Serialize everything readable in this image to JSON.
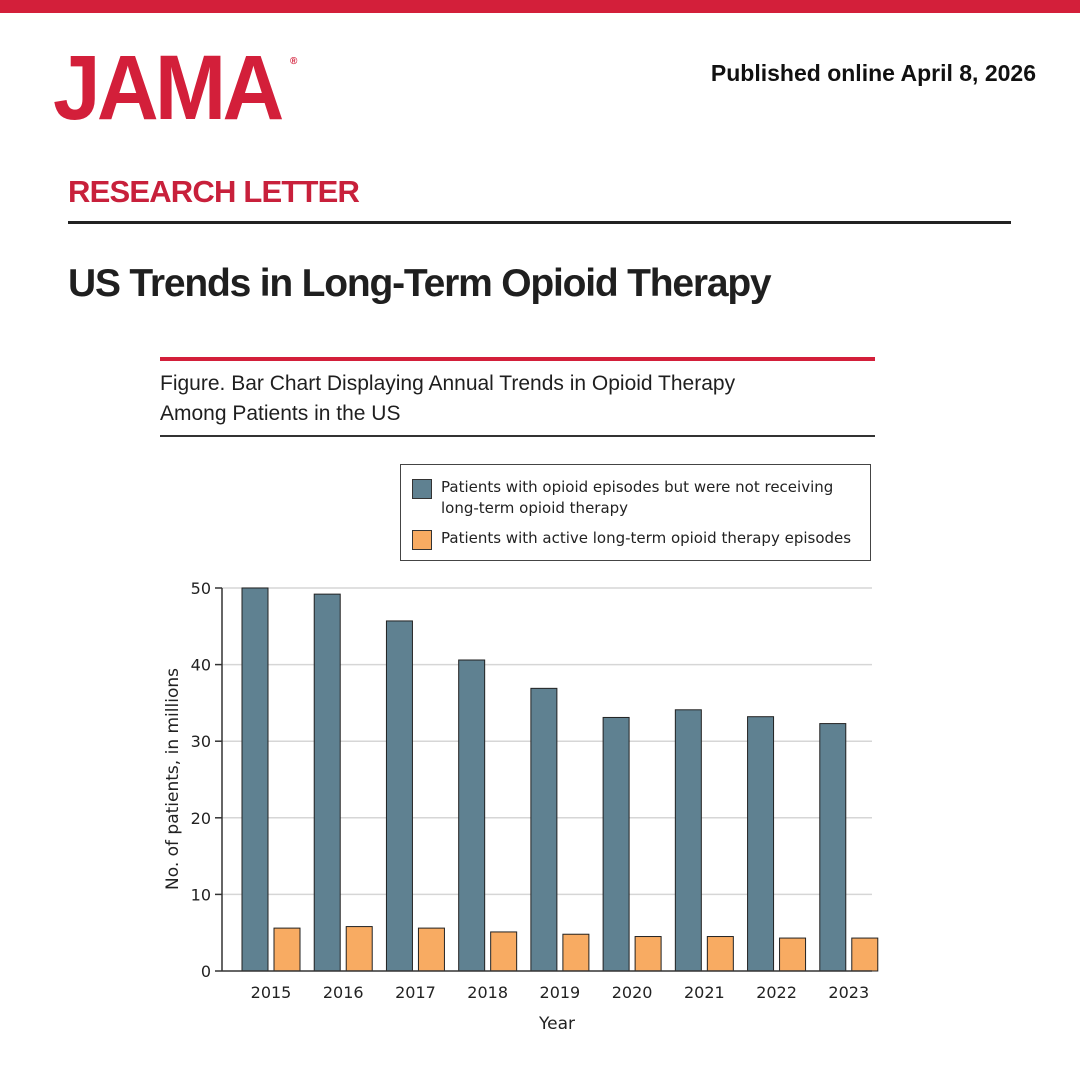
{
  "header": {
    "logo": "JAMA",
    "logo_mark": "®",
    "published": "Published online April 8, 2026"
  },
  "article": {
    "section": "RESEARCH LETTER",
    "title": "US Trends in Long-Term Opioid Therapy"
  },
  "figure": {
    "caption_line1": "Figure. Bar Chart Displaying Annual Trends in Opioid Therapy",
    "caption_line2": "Among Patients in the US"
  },
  "colors": {
    "brand_red": "#d31f3a",
    "series_not_ltot": "#5f8191",
    "series_ltot": "#f8ab62"
  },
  "chart_data": {
    "type": "bar",
    "categories": [
      "2015",
      "2016",
      "2017",
      "2018",
      "2019",
      "2020",
      "2021",
      "2022",
      "2023"
    ],
    "series": [
      {
        "name": "Patients with opioid episodes but were not receiving long-term opioid therapy",
        "legend_line1": "Patients with opioid episodes but were not receiving",
        "legend_line2": "long-term opioid therapy",
        "color": "#5f8191",
        "values": [
          50.0,
          49.2,
          45.7,
          40.6,
          36.9,
          33.1,
          34.1,
          33.2,
          32.3
        ]
      },
      {
        "name": "Patients with active long-term opioid therapy episodes",
        "legend_line1": "Patients with active long-term opioid therapy episodes",
        "color": "#f8ab62",
        "values": [
          5.6,
          5.8,
          5.6,
          5.1,
          4.8,
          4.5,
          4.5,
          4.3,
          4.3
        ]
      }
    ],
    "xlabel": "Year",
    "ylabel": "No. of patients, in millions",
    "ylim": [
      0,
      50
    ],
    "yticks": [
      0,
      10,
      20,
      30,
      40,
      50
    ],
    "grid": true,
    "legend_position": "top-right"
  }
}
